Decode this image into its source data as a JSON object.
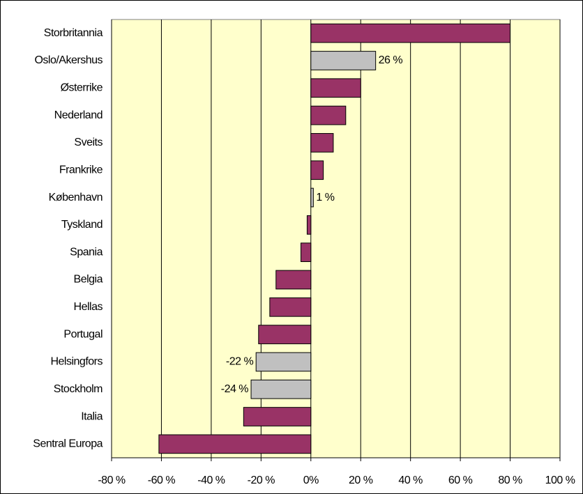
{
  "chart_data": {
    "type": "bar",
    "orientation": "horizontal",
    "categories": [
      "Storbritannia",
      "Oslo/Akershus",
      "Østerrike",
      "Nederland",
      "Sveits",
      "Frankrike",
      "København",
      "Tyskland",
      "Spania",
      "Belgia",
      "Hellas",
      "Portugal",
      "Helsingfors",
      "Stockholm",
      "Italia",
      "Sentral Europa"
    ],
    "values": [
      80,
      26,
      20,
      14,
      9,
      5,
      1,
      -1.5,
      -4,
      -14,
      -16.5,
      -21,
      -22,
      -24,
      -27,
      -61
    ],
    "value_labels": [
      null,
      "26 %",
      null,
      null,
      null,
      null,
      "1 %",
      null,
      null,
      null,
      null,
      null,
      "-22 %",
      "-24 %",
      null,
      null
    ],
    "colors": [
      "#993366",
      "#c0c0c0",
      "#993366",
      "#993366",
      "#993366",
      "#993366",
      "#c0c0c0",
      "#993366",
      "#993366",
      "#993366",
      "#993366",
      "#993366",
      "#c0c0c0",
      "#c0c0c0",
      "#993366",
      "#993366"
    ],
    "xlim": [
      -80,
      100
    ],
    "xticks": [
      {
        "value": -80,
        "label": "-80 %"
      },
      {
        "value": -60,
        "label": "-60 %"
      },
      {
        "value": -40,
        "label": "-40 %"
      },
      {
        "value": -20,
        "label": "-20 %"
      },
      {
        "value": 0,
        "label": "0%"
      },
      {
        "value": 20,
        "label": "20 %"
      },
      {
        "value": 40,
        "label": "40 %"
      },
      {
        "value": 60,
        "label": "60 %"
      },
      {
        "value": 80,
        "label": "80 %"
      },
      {
        "value": 100,
        "label": "100 %"
      }
    ],
    "grid": true,
    "background": "#ffffcc"
  }
}
